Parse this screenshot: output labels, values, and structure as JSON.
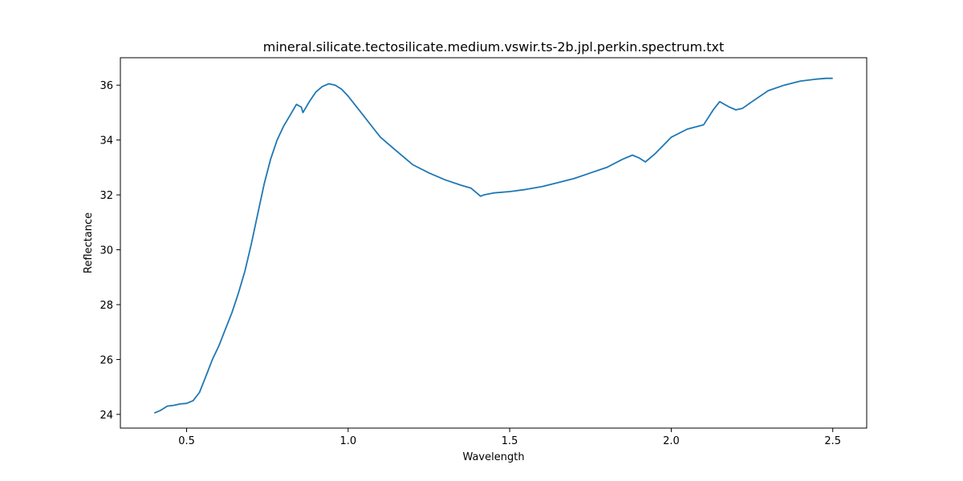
{
  "chart_data": {
    "type": "line",
    "title": "mineral.silicate.tectosilicate.medium.vswir.ts-2b.jpl.perkin.spectrum.txt",
    "xlabel": "Wavelength",
    "ylabel": "Reflectance",
    "xlim": [
      0.295,
      2.605
    ],
    "ylim": [
      23.5,
      37.0
    ],
    "xticks": [
      0.5,
      1.0,
      1.5,
      2.0,
      2.5
    ],
    "xtick_labels": [
      "0.5",
      "1.0",
      "1.5",
      "2.0",
      "2.5"
    ],
    "yticks": [
      24,
      26,
      28,
      30,
      32,
      34,
      36
    ],
    "ytick_labels": [
      "24",
      "26",
      "28",
      "30",
      "32",
      "34",
      "36"
    ],
    "grid": false,
    "color": "#1f77b4",
    "series": [
      {
        "x": [
          0.4,
          0.42,
          0.44,
          0.46,
          0.48,
          0.5,
          0.52,
          0.54,
          0.56,
          0.58,
          0.6,
          0.62,
          0.64,
          0.66,
          0.68,
          0.7,
          0.72,
          0.74,
          0.76,
          0.78,
          0.8,
          0.82,
          0.84,
          0.855,
          0.86,
          0.88,
          0.9,
          0.92,
          0.94,
          0.96,
          0.98,
          1.0,
          1.02,
          1.05,
          1.08,
          1.1,
          1.15,
          1.2,
          1.25,
          1.3,
          1.35,
          1.38,
          1.4,
          1.41,
          1.42,
          1.45,
          1.5,
          1.55,
          1.6,
          1.65,
          1.7,
          1.75,
          1.8,
          1.85,
          1.88,
          1.9,
          1.92,
          1.95,
          2.0,
          2.05,
          2.1,
          2.13,
          2.15,
          2.18,
          2.2,
          2.22,
          2.25,
          2.3,
          2.35,
          2.4,
          2.45,
          2.48,
          2.5
        ],
        "y": [
          24.05,
          24.15,
          24.3,
          24.33,
          24.38,
          24.4,
          24.5,
          24.8,
          25.4,
          26.0,
          26.5,
          27.1,
          27.7,
          28.4,
          29.2,
          30.2,
          31.3,
          32.4,
          33.3,
          34.0,
          34.5,
          34.9,
          35.3,
          35.2,
          35.0,
          35.4,
          35.75,
          35.95,
          36.05,
          36.0,
          35.85,
          35.6,
          35.3,
          34.85,
          34.4,
          34.1,
          33.6,
          33.1,
          32.8,
          32.55,
          32.35,
          32.25,
          32.05,
          31.95,
          32.0,
          32.07,
          32.12,
          32.2,
          32.3,
          32.45,
          32.6,
          32.8,
          33.0,
          33.3,
          33.45,
          33.35,
          33.2,
          33.5,
          34.1,
          34.4,
          34.55,
          35.1,
          35.4,
          35.2,
          35.1,
          35.15,
          35.4,
          35.8,
          36.0,
          36.15,
          36.22,
          36.25,
          36.25
        ]
      }
    ]
  }
}
